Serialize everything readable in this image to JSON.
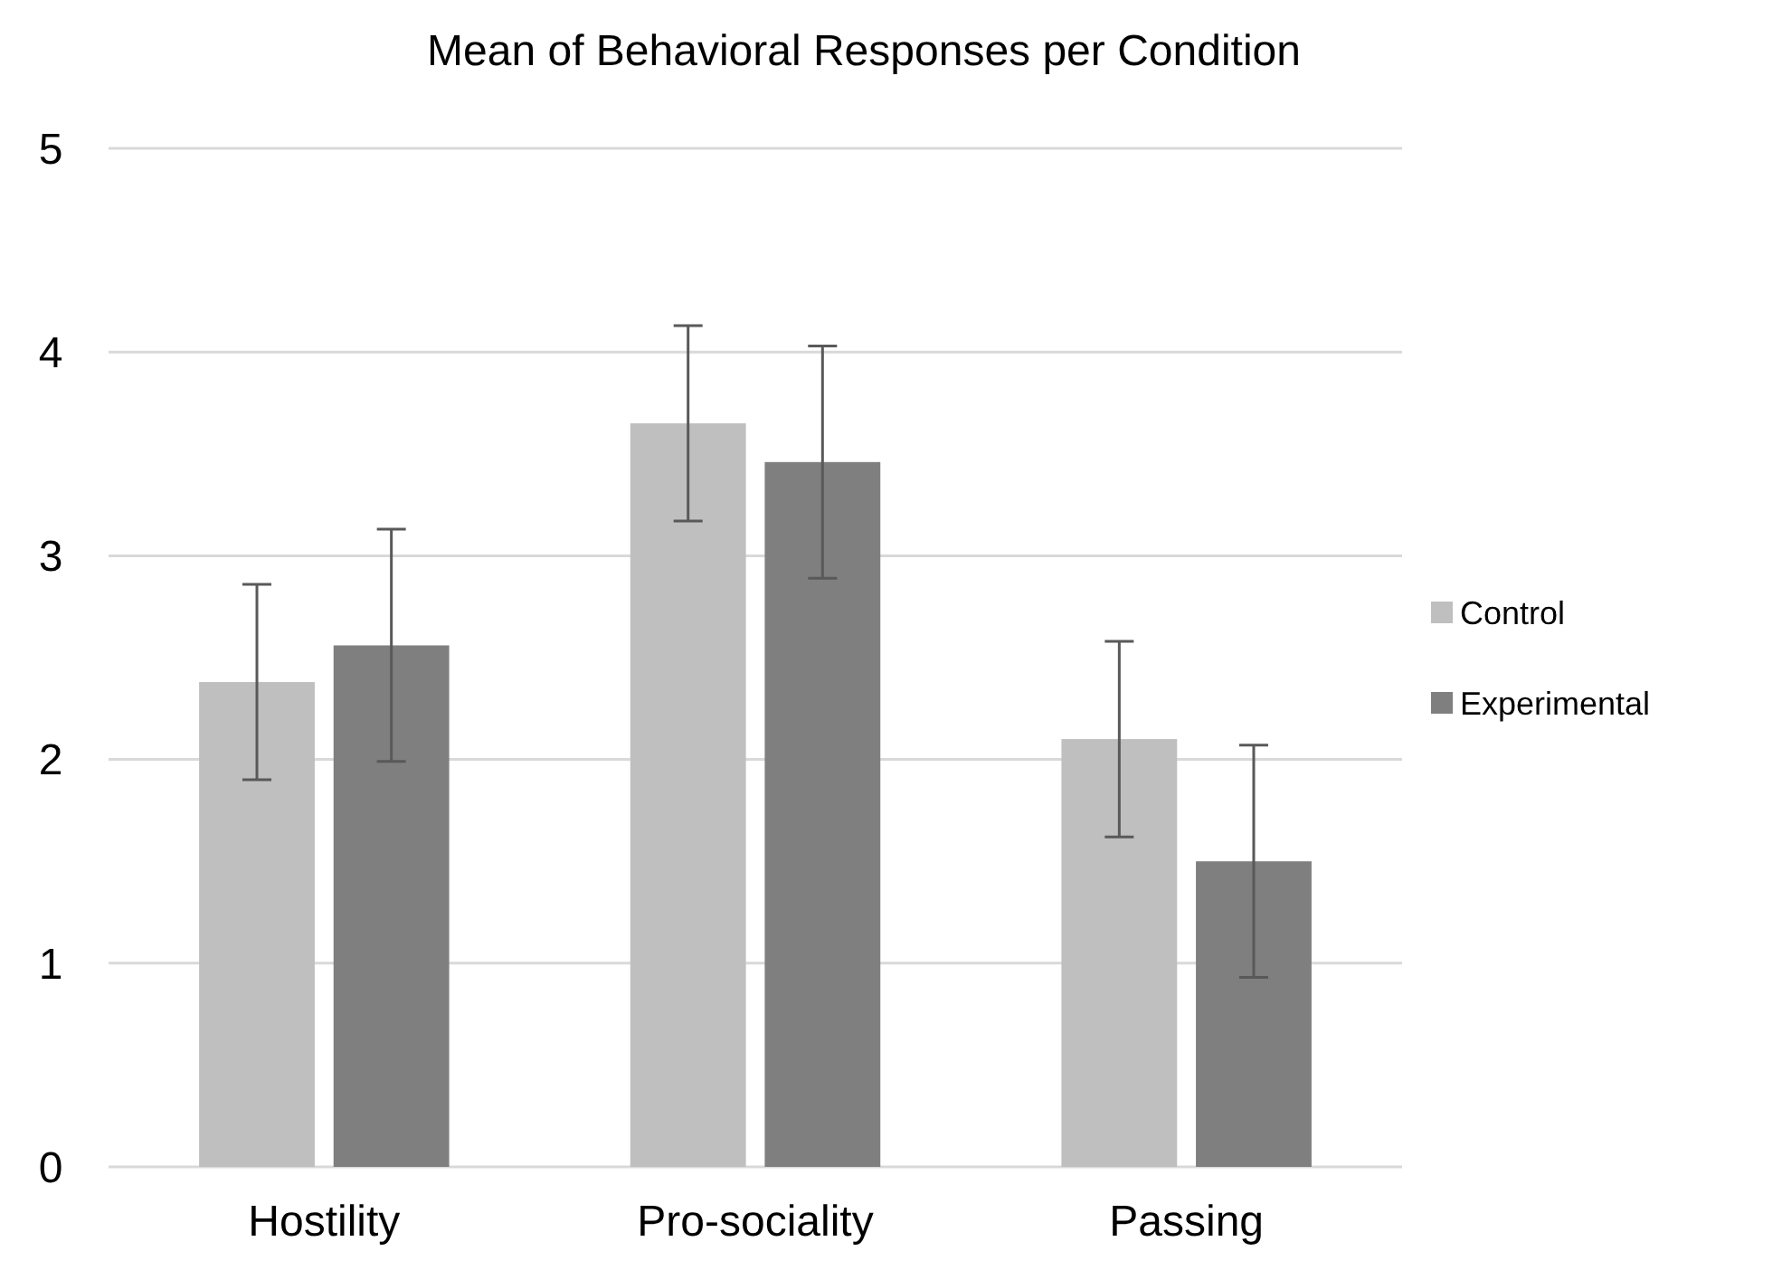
{
  "chart_data": {
    "type": "bar",
    "title": "Mean of Behavioral Responses per Condition",
    "categories": [
      "Hostility",
      "Pro-sociality",
      "Passing"
    ],
    "series": [
      {
        "name": "Control",
        "color": "#bfbfbf",
        "values": [
          2.38,
          3.65,
          2.1
        ],
        "errors": [
          0.48,
          0.48,
          0.48
        ]
      },
      {
        "name": "Experimental",
        "color": "#7f7f7f",
        "values": [
          2.56,
          3.46,
          1.5
        ],
        "errors": [
          0.57,
          0.57,
          0.57
        ]
      }
    ],
    "ylim": [
      0,
      5
    ],
    "yticks": [
      0,
      1,
      2,
      3,
      4,
      5
    ],
    "grid": "y",
    "legend": "right"
  }
}
